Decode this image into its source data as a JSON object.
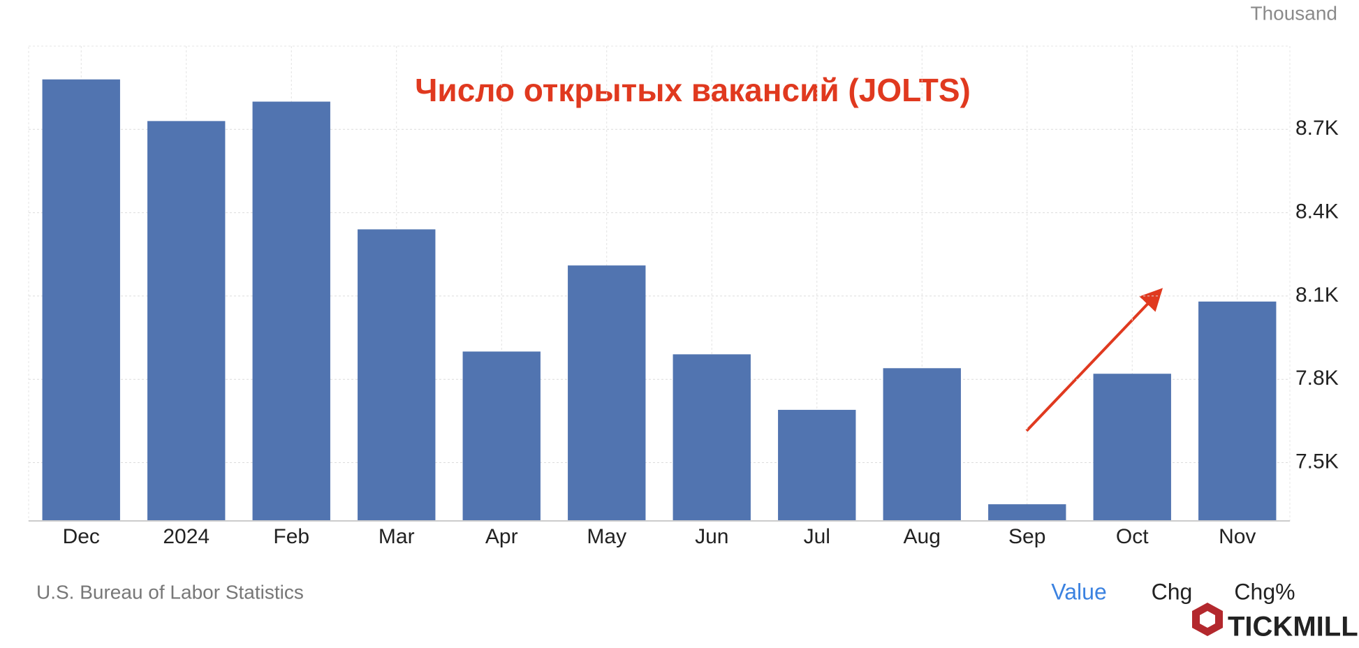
{
  "chart_data": {
    "type": "bar",
    "title": "Число открытых вакансий (JOLTS)",
    "unit": "Thousand",
    "categories": [
      "Dec",
      "2024",
      "Feb",
      "Mar",
      "Apr",
      "May",
      "Jun",
      "Jul",
      "Aug",
      "Sep",
      "Oct",
      "Nov"
    ],
    "values": [
      8880,
      8730,
      8800,
      8340,
      7900,
      8210,
      7890,
      7690,
      7840,
      7350,
      7820,
      8080
    ],
    "color": "#5174b0",
    "ylim": [
      7290,
      9000
    ],
    "yticks": [
      {
        "value": 7500,
        "label": "7.5K"
      },
      {
        "value": 7800,
        "label": "7.8K"
      },
      {
        "value": 8100,
        "label": "8.1K"
      },
      {
        "value": 8400,
        "label": "8.4K"
      },
      {
        "value": 8700,
        "label": "8.7K"
      }
    ],
    "grid": true,
    "source": "U.S. Bureau of Labor Statistics",
    "buttons": [
      "Value",
      "Chg",
      "Chg%"
    ],
    "brand": "TICKMILL"
  }
}
